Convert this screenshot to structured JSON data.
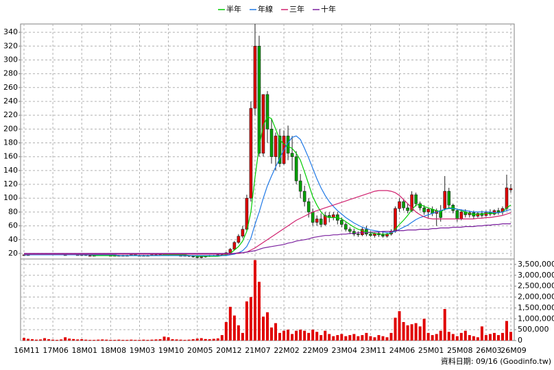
{
  "chart_data": {
    "type": "candlestick",
    "categories": [
      "16M11",
      null,
      null,
      null,
      null,
      null,
      null,
      "17M06",
      null,
      null,
      null,
      null,
      null,
      null,
      "18M01",
      null,
      null,
      null,
      null,
      null,
      null,
      "18M08",
      null,
      null,
      null,
      null,
      null,
      null,
      "19M03",
      null,
      null,
      null,
      null,
      null,
      null,
      "19M10",
      null,
      null,
      null,
      null,
      null,
      null,
      "20M05",
      null,
      null,
      null,
      null,
      null,
      null,
      "20M12",
      null,
      null,
      null,
      null,
      null,
      null,
      "21M07",
      null,
      null,
      null,
      null,
      null,
      null,
      "22M02",
      null,
      null,
      null,
      null,
      null,
      null,
      "22M09",
      null,
      null,
      null,
      null,
      null,
      null,
      "23M04",
      null,
      null,
      null,
      null,
      null,
      null,
      "23M11",
      null,
      null,
      null,
      null,
      null,
      null,
      "24M06",
      null,
      null,
      null,
      null,
      null,
      null,
      "25M01",
      null,
      null,
      null,
      null,
      null,
      null,
      "25M08",
      null,
      null,
      null,
      null,
      null,
      null,
      "26M03",
      null,
      null,
      null,
      null,
      null,
      "26M09"
    ],
    "open": [
      17,
      18,
      18,
      19,
      18,
      19,
      19,
      20,
      19,
      19,
      18,
      18,
      19,
      18,
      18,
      18,
      17,
      17,
      17,
      18,
      18,
      17,
      17,
      17,
      17,
      17,
      17,
      18,
      17,
      17,
      17,
      17,
      18,
      18,
      19,
      19,
      18,
      18,
      17,
      17,
      17,
      16,
      15,
      14,
      15,
      16,
      17,
      17,
      18,
      18,
      21,
      26,
      36,
      45,
      55,
      100,
      230,
      320,
      165,
      250,
      200,
      160,
      190,
      150,
      190,
      165,
      160,
      125,
      110,
      95,
      80,
      65,
      70,
      62,
      75,
      72,
      76,
      68,
      62,
      55,
      52,
      48,
      47,
      55,
      48,
      46,
      49,
      47,
      45,
      48,
      52,
      85,
      95,
      86,
      82,
      105,
      92,
      86,
      80,
      84,
      78,
      82,
      85,
      110,
      90,
      82,
      70,
      80,
      76,
      79,
      74,
      78,
      75,
      80,
      77,
      82,
      80,
      85,
      112
    ],
    "high": [
      18,
      19,
      19,
      19,
      19,
      20,
      20,
      20,
      20,
      19,
      19,
      19,
      19,
      19,
      19,
      18,
      18,
      18,
      18,
      19,
      18,
      18,
      18,
      18,
      18,
      18,
      18,
      18,
      18,
      18,
      18,
      18,
      19,
      20,
      20,
      20,
      19,
      18,
      18,
      18,
      17,
      17,
      16,
      16,
      17,
      18,
      18,
      19,
      19,
      22,
      28,
      38,
      48,
      60,
      105,
      240,
      352,
      335,
      250,
      255,
      215,
      195,
      200,
      198,
      205,
      190,
      168,
      135,
      118,
      100,
      85,
      75,
      78,
      80,
      80,
      80,
      80,
      72,
      65,
      58,
      56,
      52,
      58,
      60,
      52,
      50,
      52,
      52,
      50,
      55,
      88,
      100,
      98,
      92,
      110,
      108,
      95,
      90,
      86,
      88,
      85,
      90,
      132,
      115,
      92,
      85,
      84,
      84,
      82,
      82,
      80,
      82,
      82,
      84,
      84,
      86,
      88,
      134,
      120
    ],
    "low": [
      17,
      17,
      18,
      18,
      18,
      18,
      19,
      19,
      18,
      18,
      17,
      18,
      18,
      17,
      17,
      17,
      16,
      16,
      17,
      17,
      17,
      16,
      16,
      16,
      16,
      16,
      17,
      17,
      16,
      16,
      16,
      17,
      17,
      18,
      18,
      18,
      17,
      17,
      16,
      16,
      15,
      14,
      13,
      13,
      14,
      15,
      16,
      17,
      17,
      17,
      20,
      25,
      34,
      42,
      52,
      95,
      220,
      160,
      160,
      180,
      150,
      140,
      145,
      148,
      155,
      140,
      120,
      100,
      88,
      72,
      60,
      60,
      58,
      60,
      65,
      68,
      62,
      58,
      52,
      48,
      45,
      44,
      45,
      45,
      44,
      43,
      44,
      43,
      43,
      46,
      50,
      80,
      82,
      78,
      80,
      88,
      82,
      76,
      72,
      74,
      60,
      66,
      82,
      86,
      78,
      66,
      68,
      72,
      72,
      70,
      72,
      72,
      73,
      74,
      75,
      76,
      76,
      82,
      108
    ],
    "close": [
      18,
      18,
      19,
      18,
      19,
      19,
      20,
      19,
      19,
      18,
      18,
      19,
      18,
      18,
      18,
      17,
      17,
      17,
      18,
      18,
      17,
      17,
      17,
      17,
      17,
      17,
      18,
      17,
      17,
      17,
      17,
      18,
      18,
      19,
      19,
      18,
      18,
      17,
      17,
      17,
      16,
      15,
      14,
      15,
      16,
      17,
      17,
      18,
      18,
      21,
      26,
      36,
      45,
      55,
      100,
      230,
      320,
      165,
      250,
      200,
      160,
      190,
      150,
      190,
      165,
      160,
      125,
      110,
      95,
      80,
      65,
      70,
      62,
      75,
      72,
      76,
      68,
      62,
      55,
      52,
      48,
      47,
      55,
      48,
      46,
      49,
      47,
      45,
      48,
      52,
      85,
      95,
      86,
      82,
      105,
      92,
      86,
      80,
      84,
      78,
      82,
      72,
      110,
      90,
      82,
      70,
      80,
      76,
      79,
      74,
      78,
      75,
      80,
      77,
      82,
      80,
      85,
      115,
      114
    ],
    "up_color": "#e00000",
    "down_color": "#00a000",
    "edge_color": "#202020",
    "series": [
      {
        "name": "半年",
        "color": "#00cc00",
        "values": [
          18,
          18,
          18,
          18,
          18,
          18,
          19,
          19,
          19,
          19,
          19,
          18,
          18,
          18,
          18,
          18,
          18,
          17,
          17,
          17,
          17,
          17,
          17,
          17,
          17,
          17,
          17,
          17,
          17,
          17,
          17,
          17,
          17,
          17,
          18,
          18,
          18,
          18,
          18,
          18,
          17,
          17,
          16,
          16,
          16,
          16,
          16,
          16,
          17,
          18,
          20,
          25,
          30,
          38,
          52,
          80,
          130,
          175,
          205,
          218,
          215,
          200,
          185,
          178,
          175,
          172,
          165,
          155,
          138,
          120,
          102,
          90,
          80,
          74,
          72,
          72,
          72,
          70,
          66,
          62,
          58,
          55,
          53,
          51,
          50,
          49,
          48,
          48,
          48,
          49,
          55,
          62,
          68,
          75,
          83,
          90,
          91,
          88,
          86,
          84,
          82,
          80,
          84,
          86,
          86,
          84,
          82,
          80,
          78,
          76,
          77,
          77,
          78,
          78,
          78,
          79,
          80,
          86,
          90
        ]
      },
      {
        "name": "年線",
        "color": "#1e78e6",
        "values": [
          18,
          18,
          18,
          18,
          18,
          18,
          18,
          18,
          18,
          18,
          18,
          18,
          18,
          18,
          18,
          18,
          18,
          18,
          18,
          18,
          18,
          18,
          18,
          17,
          17,
          17,
          17,
          17,
          17,
          17,
          17,
          17,
          17,
          17,
          17,
          17,
          17,
          17,
          17,
          17,
          17,
          17,
          17,
          17,
          17,
          17,
          17,
          17,
          17,
          17,
          18,
          19,
          21,
          24,
          30,
          42,
          62,
          80,
          100,
          118,
          132,
          145,
          158,
          170,
          180,
          188,
          190,
          185,
          172,
          158,
          143,
          128,
          115,
          104,
          95,
          88,
          82,
          77,
          72,
          68,
          64,
          61,
          58,
          56,
          54,
          53,
          52,
          51,
          50,
          50,
          52,
          55,
          58,
          61,
          65,
          69,
          72,
          74,
          76,
          78,
          80,
          82,
          84,
          85,
          85,
          84,
          83,
          82,
          81,
          80,
          80,
          80,
          80,
          80,
          79,
          79,
          80,
          82,
          84
        ]
      },
      {
        "name": "三年",
        "color": "#d0206e",
        "values": [
          19,
          19,
          19,
          19,
          19,
          19,
          19,
          19,
          19,
          19,
          19,
          19,
          19,
          19,
          19,
          19,
          19,
          19,
          19,
          19,
          19,
          19,
          19,
          19,
          19,
          19,
          19,
          19,
          19,
          19,
          19,
          19,
          19,
          19,
          19,
          19,
          19,
          19,
          19,
          19,
          19,
          19,
          19,
          19,
          19,
          19,
          19,
          19,
          19,
          19,
          19,
          20,
          20,
          21,
          22,
          25,
          28,
          32,
          36,
          40,
          44,
          48,
          52,
          56,
          60,
          64,
          68,
          71,
          74,
          77,
          80,
          82,
          84,
          86,
          88,
          90,
          92,
          94,
          96,
          98,
          100,
          102,
          104,
          106,
          108,
          110,
          111,
          111,
          111,
          110,
          108,
          104,
          98,
          92,
          86,
          80,
          76,
          73,
          71,
          70,
          70,
          70,
          70,
          70,
          70,
          70,
          70,
          70,
          70,
          70,
          71,
          71,
          72,
          72,
          73,
          74,
          75,
          77,
          79
        ]
      },
      {
        "name": "十年",
        "color": "#7a1f9e",
        "values": [
          20,
          20,
          20,
          20,
          20,
          20,
          20,
          20,
          20,
          20,
          20,
          20,
          20,
          20,
          20,
          20,
          20,
          20,
          20,
          20,
          20,
          20,
          20,
          20,
          20,
          20,
          20,
          20,
          20,
          20,
          20,
          20,
          20,
          20,
          20,
          20,
          20,
          20,
          20,
          20,
          20,
          20,
          20,
          20,
          20,
          20,
          20,
          20,
          20,
          20,
          20,
          20,
          21,
          21,
          22,
          23,
          24,
          26,
          28,
          29,
          30,
          31,
          32,
          33,
          35,
          36,
          38,
          39,
          40,
          41,
          43,
          44,
          45,
          46,
          46,
          47,
          47,
          48,
          48,
          49,
          49,
          50,
          50,
          50,
          51,
          51,
          51,
          52,
          52,
          52,
          53,
          53,
          53,
          54,
          54,
          54,
          55,
          55,
          55,
          56,
          56,
          57,
          57,
          57,
          58,
          58,
          58,
          59,
          59,
          59,
          60,
          60,
          61,
          61,
          62,
          62,
          63,
          63,
          63
        ]
      }
    ],
    "ylim": [
      12,
      352
    ],
    "yticks": [
      20,
      40,
      60,
      80,
      100,
      120,
      140,
      160,
      180,
      200,
      220,
      240,
      260,
      280,
      300,
      320,
      340
    ],
    "grid": true,
    "volume": {
      "color": "#e00000",
      "values": [
        120000,
        80000,
        60000,
        40000,
        50000,
        110000,
        60000,
        40000,
        30000,
        50000,
        150000,
        90000,
        70000,
        50000,
        60000,
        40000,
        30000,
        30000,
        40000,
        50000,
        40000,
        30000,
        30000,
        40000,
        30000,
        30000,
        40000,
        30000,
        30000,
        40000,
        30000,
        40000,
        50000,
        60000,
        180000,
        150000,
        60000,
        50000,
        40000,
        30000,
        40000,
        60000,
        90000,
        110000,
        70000,
        60000,
        80000,
        100000,
        250000,
        850000,
        1550000,
        1150000,
        700000,
        350000,
        1800000,
        2000000,
        3700000,
        2700000,
        1100000,
        1300000,
        600000,
        800000,
        350000,
        450000,
        500000,
        300000,
        450000,
        500000,
        450000,
        350000,
        500000,
        400000,
        250000,
        450000,
        300000,
        200000,
        250000,
        300000,
        200000,
        250000,
        300000,
        200000,
        250000,
        350000,
        200000,
        150000,
        250000,
        200000,
        150000,
        350000,
        1050000,
        1350000,
        850000,
        700000,
        750000,
        800000,
        650000,
        1000000,
        350000,
        250000,
        300000,
        450000,
        1450000,
        400000,
        300000,
        200000,
        350000,
        450000,
        250000,
        200000,
        150000,
        650000,
        250000,
        300000,
        350000,
        250000,
        350000,
        900000,
        400000
      ],
      "ylim": [
        0,
        3750000
      ],
      "yticks": [
        {
          "value": 0,
          "label": "0"
        },
        {
          "value": 500000,
          "label": "500,000"
        },
        {
          "value": 1000000,
          "label": "1,000,000"
        },
        {
          "value": 1500000,
          "label": "1,500,000"
        },
        {
          "value": 2000000,
          "label": "2,000,000"
        },
        {
          "value": 2500000,
          "label": "2,500,000"
        },
        {
          "value": 3000000,
          "label": "3,000,000"
        },
        {
          "value": 3500000,
          "label": "3,500,000"
        }
      ]
    },
    "source": "資料日期: 09/16 (Goodinfo.tw)"
  }
}
